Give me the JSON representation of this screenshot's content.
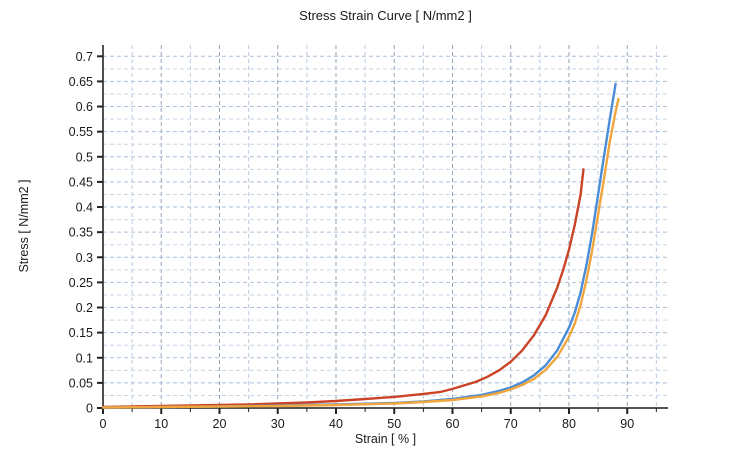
{
  "chart_data": {
    "type": "line",
    "title": "Stress Strain Curve [ N/mm2 ]",
    "xlabel": "Strain [ % ]",
    "ylabel": "Stress [ N/mm2 ]",
    "xlim": [
      0,
      97
    ],
    "ylim": [
      0,
      0.7225
    ],
    "legend": {
      "show": false
    },
    "grid": {
      "show": true,
      "style": "dashed",
      "x_minor_step": 5,
      "x_major_step": 10,
      "y_minor_step": 0.025,
      "y_major_step": 0.05
    },
    "xticks": {
      "values": [
        0,
        10,
        20,
        30,
        40,
        50,
        60,
        70,
        80,
        90
      ],
      "labels": [
        "0",
        "10",
        "20",
        "30",
        "40",
        "50",
        "60",
        "70",
        "80",
        "90"
      ],
      "minor_values": [
        5,
        15,
        25,
        35,
        45,
        55,
        65,
        75,
        85,
        95
      ]
    },
    "yticks": {
      "values": [
        0,
        0.05,
        0.1,
        0.15,
        0.2,
        0.25,
        0.3,
        0.35,
        0.4,
        0.45,
        0.5,
        0.55,
        0.6,
        0.65,
        0.7
      ],
      "labels": [
        "0",
        "0.05",
        "0.1",
        "0.15",
        "0.2",
        "0.25",
        "0.3",
        "0.35",
        "0.4",
        "0.45",
        "0.5",
        "0.55",
        "0.6",
        "0.65",
        "0.7"
      ]
    },
    "colors": {
      "axis": "#3c3c3c",
      "tick": "#222222",
      "tick_text": "#1a1a1a",
      "grid_minor_v": "#bccbde",
      "grid_major_v": "#93a3b4",
      "grid_minor_h": "#c6d6e9",
      "grid_major_h": "#a9c0dc"
    },
    "series": [
      {
        "name": "curve-red",
        "color": "#cb4327",
        "points": [
          [
            0,
            0.002
          ],
          [
            5,
            0.003
          ],
          [
            10,
            0.004
          ],
          [
            15,
            0.005
          ],
          [
            20,
            0.006
          ],
          [
            25,
            0.007
          ],
          [
            30,
            0.009
          ],
          [
            35,
            0.011
          ],
          [
            40,
            0.014
          ],
          [
            45,
            0.018
          ],
          [
            50,
            0.022
          ],
          [
            55,
            0.028
          ],
          [
            58,
            0.032
          ],
          [
            60,
            0.038
          ],
          [
            62,
            0.045
          ],
          [
            64,
            0.052
          ],
          [
            66,
            0.062
          ],
          [
            68,
            0.075
          ],
          [
            70,
            0.092
          ],
          [
            72,
            0.115
          ],
          [
            74,
            0.145
          ],
          [
            76,
            0.185
          ],
          [
            78,
            0.24
          ],
          [
            79,
            0.275
          ],
          [
            80,
            0.315
          ],
          [
            81,
            0.365
          ],
          [
            82,
            0.425
          ],
          [
            82.5,
            0.475
          ]
        ]
      },
      {
        "name": "curve-blue",
        "color": "#4b8cd7",
        "points": [
          [
            0,
            0.001
          ],
          [
            10,
            0.002
          ],
          [
            20,
            0.003
          ],
          [
            30,
            0.005
          ],
          [
            40,
            0.007
          ],
          [
            50,
            0.01
          ],
          [
            55,
            0.013
          ],
          [
            60,
            0.018
          ],
          [
            65,
            0.026
          ],
          [
            68,
            0.034
          ],
          [
            70,
            0.041
          ],
          [
            72,
            0.051
          ],
          [
            74,
            0.065
          ],
          [
            76,
            0.085
          ],
          [
            78,
            0.115
          ],
          [
            80,
            0.16
          ],
          [
            81,
            0.19
          ],
          [
            82,
            0.23
          ],
          [
            83,
            0.285
          ],
          [
            84,
            0.35
          ],
          [
            85,
            0.425
          ],
          [
            86,
            0.5
          ],
          [
            87,
            0.575
          ],
          [
            88,
            0.645
          ]
        ]
      },
      {
        "name": "curve-orange",
        "color": "#f0a63c",
        "points": [
          [
            0,
            0.001
          ],
          [
            10,
            0.002
          ],
          [
            20,
            0.003
          ],
          [
            30,
            0.004
          ],
          [
            40,
            0.006
          ],
          [
            50,
            0.009
          ],
          [
            55,
            0.012
          ],
          [
            60,
            0.016
          ],
          [
            65,
            0.023
          ],
          [
            68,
            0.03
          ],
          [
            70,
            0.037
          ],
          [
            72,
            0.046
          ],
          [
            74,
            0.058
          ],
          [
            76,
            0.076
          ],
          [
            78,
            0.102
          ],
          [
            80,
            0.142
          ],
          [
            81,
            0.168
          ],
          [
            82,
            0.205
          ],
          [
            83,
            0.255
          ],
          [
            84,
            0.315
          ],
          [
            85,
            0.385
          ],
          [
            86,
            0.455
          ],
          [
            87,
            0.53
          ],
          [
            88,
            0.59
          ],
          [
            88.5,
            0.615
          ]
        ]
      }
    ]
  }
}
